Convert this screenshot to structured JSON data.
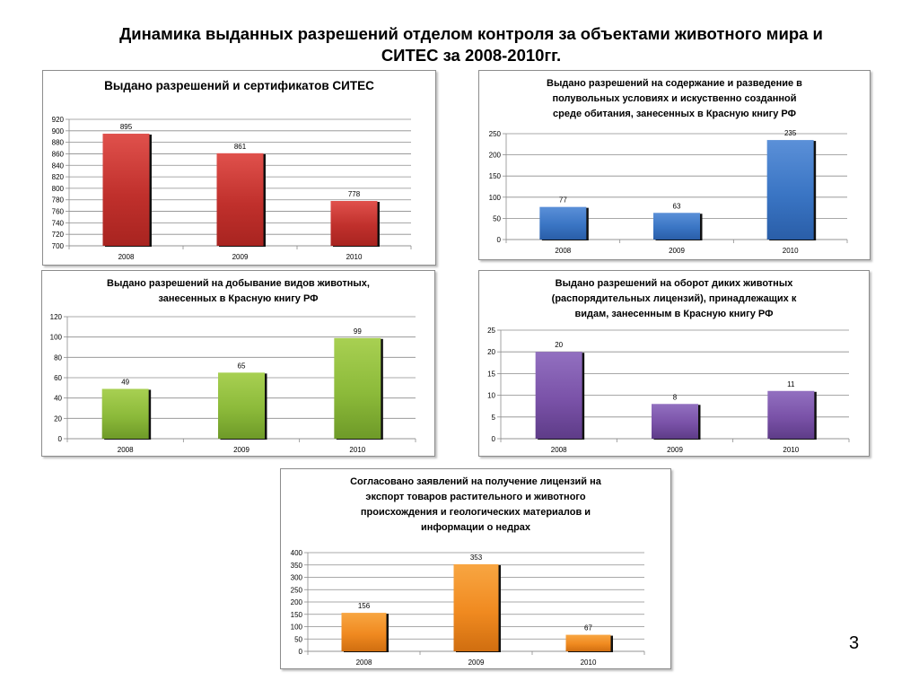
{
  "slide": {
    "title_line1": "Динамика выданных разрешений отделом контроля за объектами животного мира и",
    "title_line2": "СИТЕС за 2008-2010гг.",
    "page_number": "3"
  },
  "chart_data": [
    {
      "type": "bar",
      "title_lines": [
        "Выдано разрешений  и сертификатов СИТЕС"
      ],
      "categories": [
        "2008",
        "2009",
        "2010"
      ],
      "values": [
        895,
        861,
        778
      ],
      "ylim": [
        700,
        920
      ],
      "yticks": [
        700,
        720,
        740,
        760,
        780,
        800,
        820,
        840,
        860,
        880,
        900,
        920
      ],
      "grid": true,
      "color": "#c0302c",
      "color_light": "#e0514c",
      "color_dark": "#a82420"
    },
    {
      "type": "bar",
      "title_lines": [
        "Выдано разрешений на содержание и разведение в",
        "полувольных условиях и искуственно созданной",
        "среде обитания, занесенных в Красную книгу РФ"
      ],
      "categories": [
        "2008",
        "2009",
        "2010"
      ],
      "values": [
        77,
        63,
        235
      ],
      "ylim": [
        0,
        250
      ],
      "yticks": [
        0,
        50,
        100,
        150,
        200,
        250
      ],
      "grid": true,
      "color": "#3a75c4",
      "color_light": "#5b90d8",
      "color_dark": "#2a5ea8"
    },
    {
      "type": "bar",
      "title_lines": [
        "Выдано разрешений на добывание видов животных,",
        "занесенных в Красную книгу РФ"
      ],
      "categories": [
        "2008",
        "2009",
        "2010"
      ],
      "values": [
        49,
        65,
        99
      ],
      "ylim": [
        0,
        120
      ],
      "yticks": [
        0,
        20,
        40,
        60,
        80,
        100,
        120
      ],
      "grid": true,
      "color": "#8cba3a",
      "color_light": "#a8d052",
      "color_dark": "#6e9a28"
    },
    {
      "type": "bar",
      "title_lines": [
        "Выдано разрешений на оборот диких животных",
        "(распорядительных лицензий), принадлежащих к",
        "видам, занесенным в Красную книгу РФ"
      ],
      "categories": [
        "2008",
        "2009",
        "2010"
      ],
      "values": [
        20,
        8,
        11
      ],
      "ylim": [
        0,
        25
      ],
      "yticks": [
        0,
        5,
        10,
        15,
        20,
        25
      ],
      "grid": true,
      "color": "#7a52a8",
      "color_light": "#9270c0",
      "color_dark": "#5e3c88"
    },
    {
      "type": "bar",
      "title_lines": [
        "Согласовано заявлений на получение лицензий на",
        "экспорт товаров растительного и животного",
        "происхождения и геологических материалов и",
        "информации о недрах"
      ],
      "categories": [
        "2008",
        "2009",
        "2010"
      ],
      "values": [
        156,
        353,
        67
      ],
      "ylim": [
        0,
        400
      ],
      "yticks": [
        0,
        50,
        100,
        150,
        200,
        250,
        300,
        350,
        400
      ],
      "grid": true,
      "color": "#f08a20",
      "color_light": "#f8a642",
      "color_dark": "#d06e10"
    }
  ]
}
